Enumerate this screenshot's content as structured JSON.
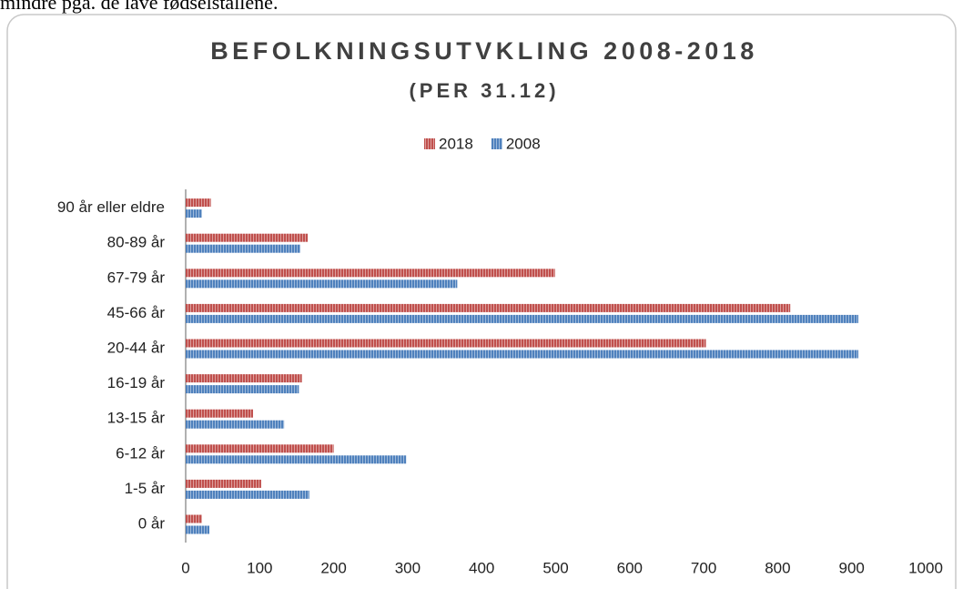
{
  "text_above": "mindre pga. de lave fødselstallene.",
  "chart_data": {
    "type": "barh",
    "title": "BEFOLKNINGSUTVKLING 2008-2018",
    "subtitle": "(PER 31.12)",
    "categories": [
      "0 år",
      "1-5 år",
      "6-12 år",
      "13-15 år",
      "16-19 år",
      "20-44 år",
      "45-66 år",
      "67-79 år",
      "80-89 år",
      "90 år eller eldre"
    ],
    "series": [
      {
        "name": "2018",
        "color": "#c0504d",
        "values": [
          22,
          102,
          200,
          91,
          157,
          703,
          817,
          499,
          165,
          34
        ]
      },
      {
        "name": "2008",
        "color": "#4f81bd",
        "values": [
          32,
          167,
          298,
          133,
          153,
          909,
          909,
          367,
          155,
          22
        ]
      }
    ],
    "xlim": [
      0,
      1000
    ],
    "xticks": [
      0,
      100,
      200,
      300,
      400,
      500,
      600,
      700,
      800,
      900,
      1000
    ],
    "legend": "top",
    "grid": false
  }
}
